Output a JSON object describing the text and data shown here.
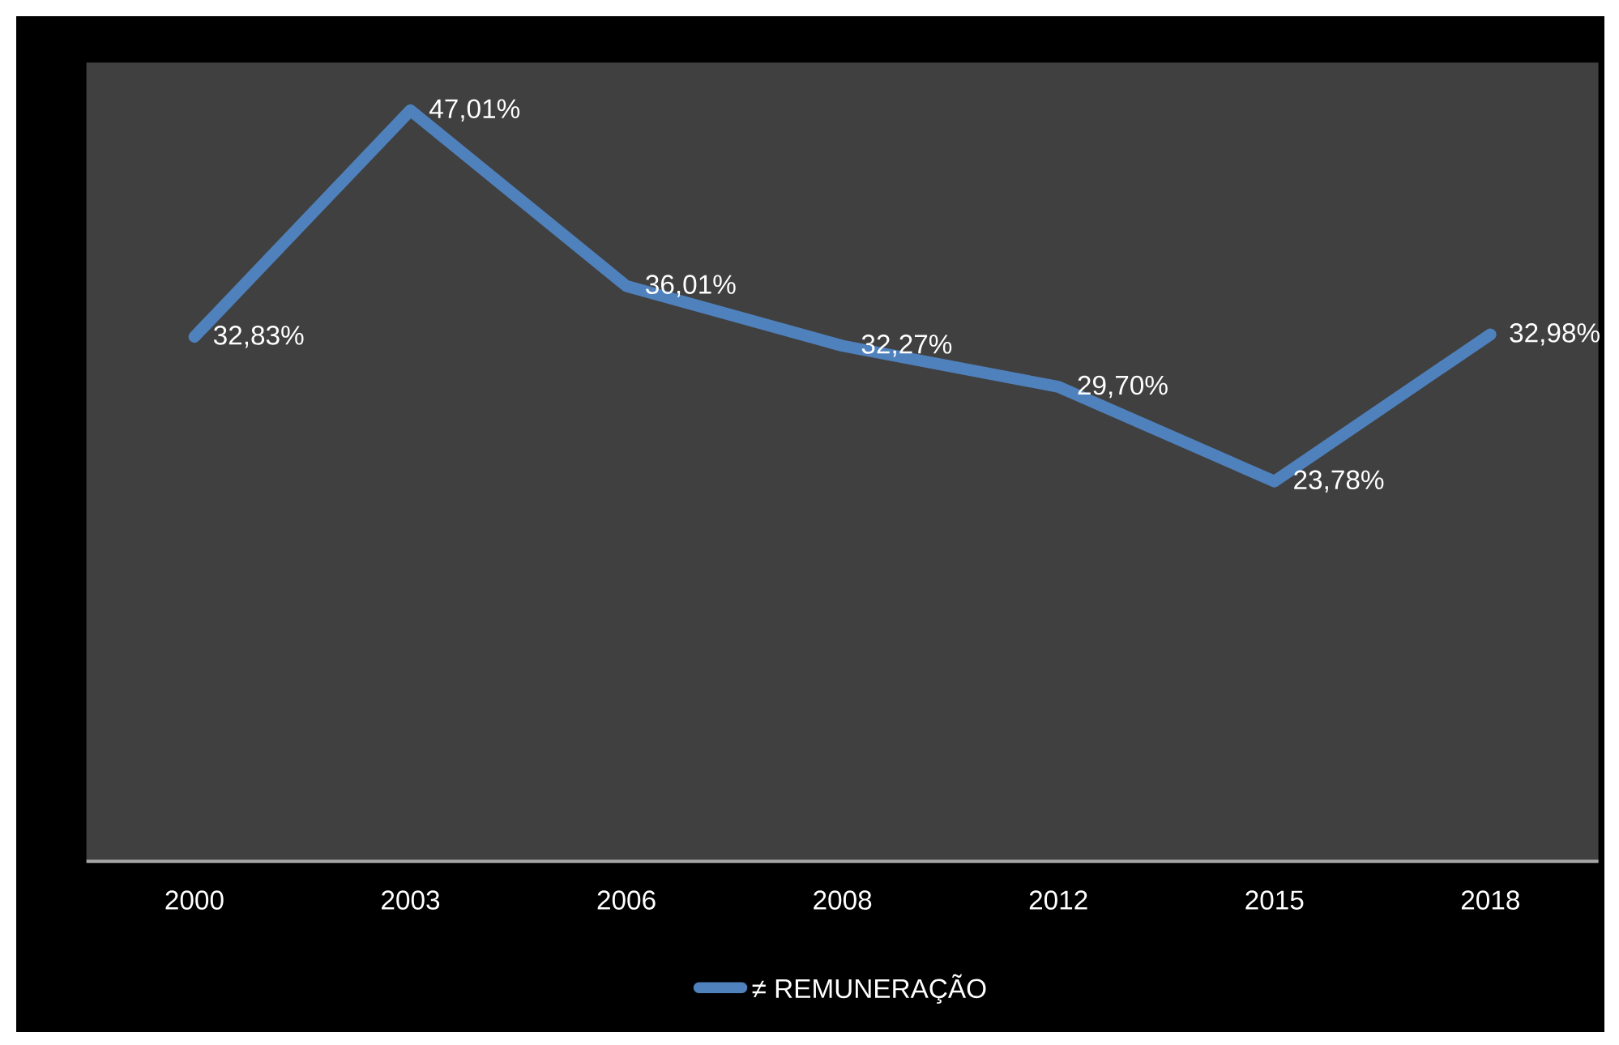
{
  "chart_data": {
    "type": "line",
    "categories": [
      "2000",
      "2003",
      "2006",
      "2008",
      "2012",
      "2015",
      "2018"
    ],
    "series": [
      {
        "name": "≠ REMUNERAÇÃO",
        "color": "#4f81bd",
        "values": [
          32.83,
          47.01,
          36.01,
          32.27,
          29.7,
          23.78,
          32.98
        ],
        "value_labels": [
          "32,83%",
          "47,01%",
          "36,01%",
          "32,27%",
          "29,70%",
          "23,78%",
          "32,98%"
        ]
      }
    ],
    "ylim": [
      0,
      50
    ],
    "tick_labels": "x",
    "legend": "bottom",
    "marker": "none",
    "line_style": "solid"
  }
}
